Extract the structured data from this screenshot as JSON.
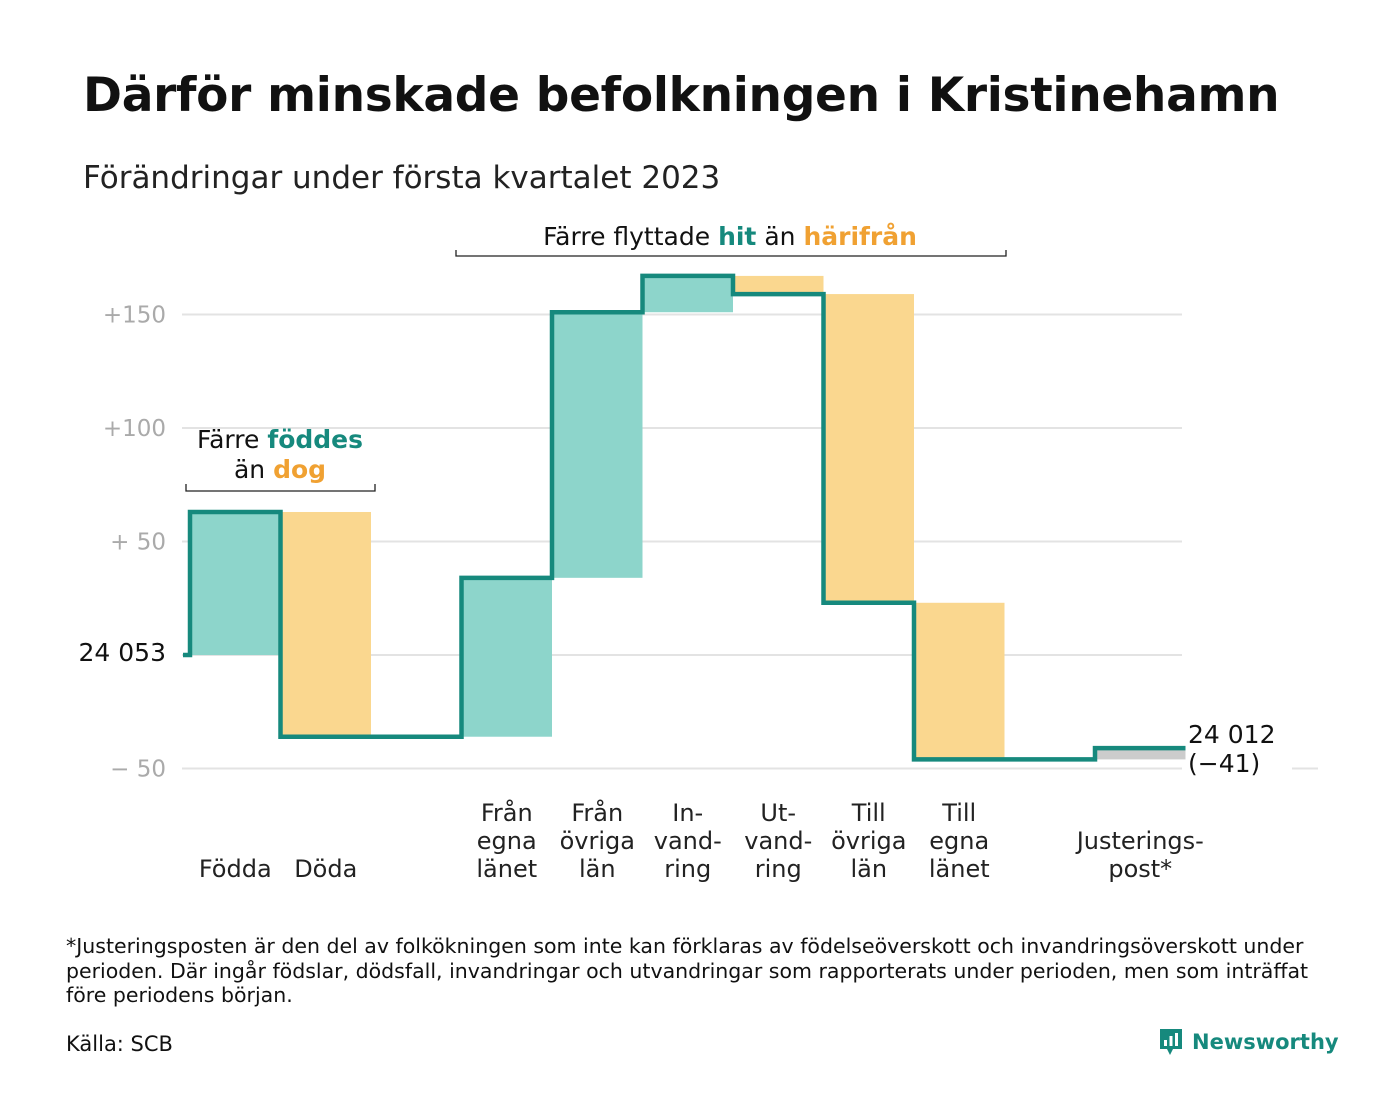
{
  "title": "Därför minskade befolkningen i Kristinehamn",
  "subtitle": "Förändringar under första kvartalet 2023",
  "annotations": {
    "births_deaths": {
      "line1_prefix": "Färre ",
      "line1_highlight": "föddes",
      "line2_prefix": "än ",
      "line2_highlight": "dog"
    },
    "migration": {
      "prefix": "Färre flyttade ",
      "highlight_in": "hit",
      "middle": " än ",
      "highlight_out": "härifrån"
    }
  },
  "chart_data": {
    "type": "waterfall",
    "start_label": "24 053",
    "end_label_value": "24 012",
    "end_label_change": "(−41)",
    "y_ticks": [
      "+150",
      "+100",
      "+ 50",
      "− 50"
    ],
    "ylim": [
      -50,
      165
    ],
    "categories": [
      {
        "lines": [
          "Födda"
        ],
        "change": 63,
        "kind": "gain"
      },
      {
        "lines": [
          "Döda"
        ],
        "change": -99,
        "kind": "loss"
      },
      {
        "lines": [],
        "change": 0,
        "kind": "none"
      },
      {
        "lines": [
          "Från",
          "egna",
          "länet"
        ],
        "change": 70,
        "kind": "gain"
      },
      {
        "lines": [
          "Från",
          "övriga",
          "län"
        ],
        "change": 117,
        "kind": "gain"
      },
      {
        "lines": [
          "In-",
          "vand-",
          "ring"
        ],
        "change": 16,
        "kind": "gain"
      },
      {
        "lines": [
          "Ut-",
          "vand-",
          "ring"
        ],
        "change": -8,
        "kind": "loss"
      },
      {
        "lines": [
          "Till",
          "övriga",
          "län"
        ],
        "change": -136,
        "kind": "loss"
      },
      {
        "lines": [
          "Till",
          "egna",
          "länet"
        ],
        "change": -69,
        "kind": "loss"
      },
      {
        "lines": [],
        "change": 0,
        "kind": "none"
      },
      {
        "lines": [
          "Justerings-",
          "post*"
        ],
        "change": 5,
        "kind": "adjust"
      }
    ],
    "colors": {
      "gain": "#8dd5cb",
      "loss": "#fad78f",
      "adjust": "#cccccc",
      "line": "#16897d",
      "grid": "#e3e3e3"
    }
  },
  "footnote": "*Justeringsposten är den del av folkökningen som inte kan förklaras av födelseöverskott och invandringsöverskott under perioden. Där ingår födslar, dödsfall, invandringar och utvandringar som rapporterats under perioden, men som inträffat före periodens början.",
  "source": "Källa: SCB",
  "brand": "Newsworthy",
  "brand_icon": "newsworthy-logo-icon",
  "colors": {
    "teal_text": "#16897d",
    "orange_text": "#f0a132"
  }
}
